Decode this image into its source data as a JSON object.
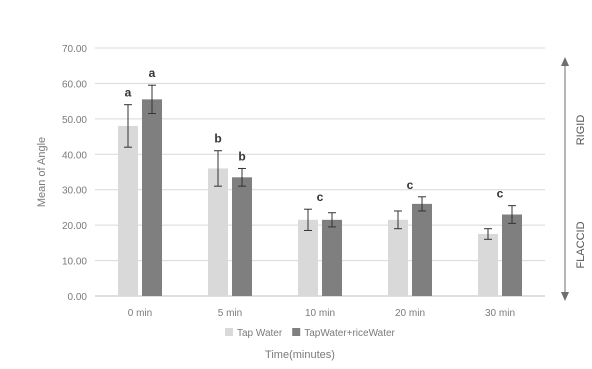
{
  "chart_data": {
    "type": "bar",
    "title": "",
    "xlabel": "Time(minutes)",
    "ylabel": "Mean of Angle",
    "ylim": [
      0,
      70
    ],
    "y_ticks": [
      "0.00",
      "10.00",
      "20.00",
      "30.00",
      "40.00",
      "50.00",
      "60.00",
      "70.00"
    ],
    "grid": true,
    "categories": [
      "0 min",
      "5 min",
      "10 min",
      "20 min",
      "30 min"
    ],
    "series": [
      {
        "name": "Tap Water",
        "color": "#d9d9d9",
        "values": [
          48.0,
          36.0,
          21.5,
          21.5,
          17.5
        ],
        "errors": [
          6.0,
          5.0,
          3.0,
          2.5,
          1.5
        ]
      },
      {
        "name": "TapWater+riceWater",
        "color": "#7f7f7f",
        "values": [
          55.5,
          33.5,
          21.5,
          26.0,
          23.0
        ],
        "errors": [
          4.0,
          2.5,
          2.0,
          2.0,
          2.5
        ]
      }
    ],
    "group_letters": [
      {
        "category": "0 min",
        "series": 0,
        "label": "a"
      },
      {
        "category": "0 min",
        "series": 1,
        "label": "a"
      },
      {
        "category": "5 min",
        "series": 0,
        "label": "b"
      },
      {
        "category": "5 min",
        "series": 1,
        "label": "b"
      },
      {
        "category": "10 min",
        "series": "center",
        "label": "c"
      },
      {
        "category": "20 min",
        "series": "center",
        "label": "c"
      },
      {
        "category": "30 min",
        "series": "center",
        "label": "c"
      }
    ],
    "legend_position": "bottom",
    "side_annotation": {
      "top": "RIGID",
      "bottom": "FLACCID"
    }
  }
}
